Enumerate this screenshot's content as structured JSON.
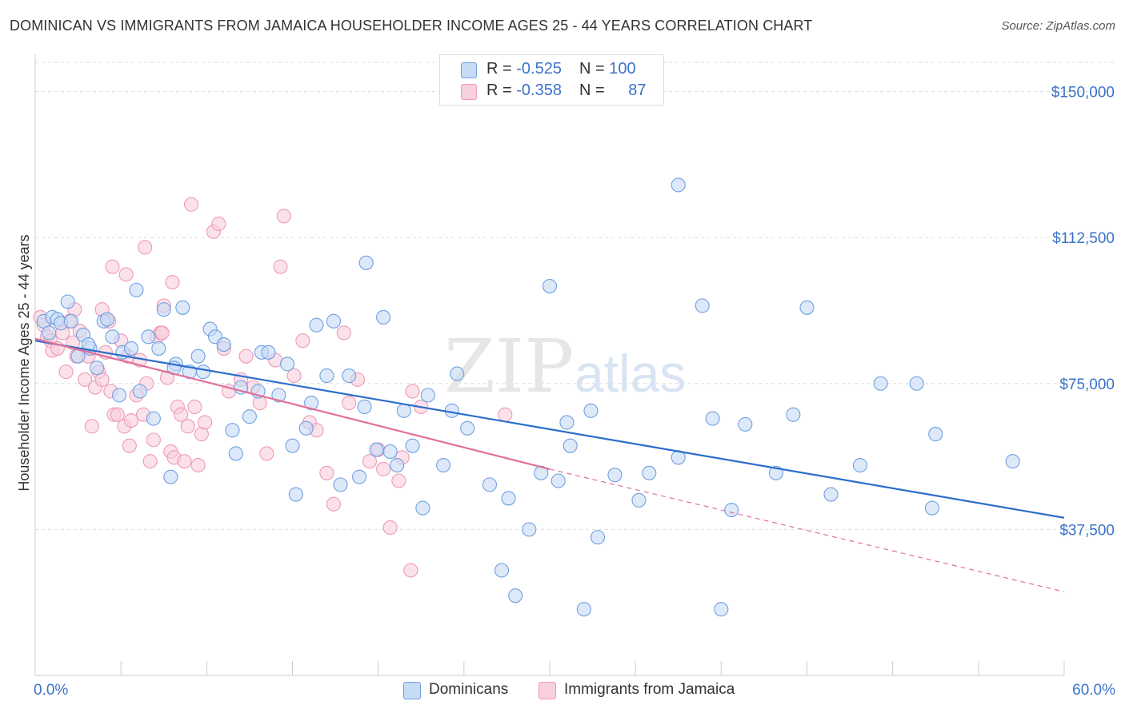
{
  "title": "DOMINICAN VS IMMIGRANTS FROM JAMAICA HOUSEHOLDER INCOME AGES 25 - 44 YEARS CORRELATION CHART",
  "source": "Source: ZipAtlas.com",
  "legend": {
    "rows": [
      {
        "r_label": "R = ",
        "r_value": "-0.525",
        "n_label": "N = ",
        "n_value": "100"
      },
      {
        "r_label": "R = ",
        "r_value": "-0.358",
        "n_label": "N = ",
        "n_value": "87"
      }
    ]
  },
  "colors": {
    "blue": "#6fa0e0",
    "blue_fill": "#c6dbf5",
    "blue_line": "#2a6dcc",
    "pink": "#ee9ab6",
    "pink_fill": "#f8cfdc",
    "pink_line": "#e0709a",
    "tick_text": "#3b73c9"
  },
  "chart_data": {
    "type": "scatter",
    "title": "DOMINICAN VS IMMIGRANTS FROM JAMAICA HOUSEHOLDER INCOME AGES 25 - 44 YEARS CORRELATION CHART",
    "xlabel": "",
    "ylabel": "Householder Income Ages 25 - 44 years",
    "xlim": [
      0,
      60
    ],
    "ylim": [
      0,
      157500
    ],
    "x_tick_labels": [
      "0.0%",
      "60.0%"
    ],
    "y_ticks": [
      37500,
      75000,
      112500,
      150000
    ],
    "y_tick_labels": [
      "$37,500",
      "$75,000",
      "$112,500",
      "$150,000"
    ],
    "watermark": {
      "zip": "ZIP",
      "atlas": "atlas"
    },
    "series": [
      {
        "name": "Dominicans",
        "color": "#6fa0e0",
        "points": [
          [
            0.5,
            91000
          ],
          [
            0.8,
            88000
          ],
          [
            1.0,
            92000
          ],
          [
            1.3,
            91500
          ],
          [
            1.5,
            90500
          ],
          [
            1.9,
            96000
          ],
          [
            2.1,
            91000
          ],
          [
            2.5,
            82000
          ],
          [
            2.8,
            87500
          ],
          [
            3.2,
            84000
          ],
          [
            3.6,
            79000
          ],
          [
            4.0,
            91000
          ],
          [
            4.2,
            91500
          ],
          [
            4.5,
            87000
          ],
          [
            4.9,
            72000
          ],
          [
            5.1,
            83000
          ],
          [
            5.6,
            84000
          ],
          [
            5.9,
            99000
          ],
          [
            6.1,
            73000
          ],
          [
            6.6,
            87000
          ],
          [
            6.9,
            66000
          ],
          [
            7.2,
            84000
          ],
          [
            7.5,
            94000
          ],
          [
            7.9,
            51000
          ],
          [
            8.2,
            80000
          ],
          [
            8.6,
            94500
          ],
          [
            9.0,
            78000
          ],
          [
            9.5,
            82000
          ],
          [
            9.8,
            78000
          ],
          [
            10.2,
            89000
          ],
          [
            10.5,
            87000
          ],
          [
            11.0,
            85000
          ],
          [
            11.5,
            63000
          ],
          [
            11.7,
            57000
          ],
          [
            12.0,
            74000
          ],
          [
            12.5,
            66500
          ],
          [
            13.0,
            73000
          ],
          [
            13.2,
            83000
          ],
          [
            13.6,
            83000
          ],
          [
            14.2,
            72000
          ],
          [
            14.7,
            80000
          ],
          [
            15.0,
            59000
          ],
          [
            15.2,
            46500
          ],
          [
            15.8,
            63500
          ],
          [
            16.1,
            70000
          ],
          [
            16.4,
            90000
          ],
          [
            17.0,
            77000
          ],
          [
            17.4,
            91000
          ],
          [
            17.8,
            49000
          ],
          [
            18.3,
            77000
          ],
          [
            18.9,
            51000
          ],
          [
            19.2,
            69000
          ],
          [
            19.3,
            106000
          ],
          [
            19.9,
            58000
          ],
          [
            20.3,
            92000
          ],
          [
            20.7,
            57500
          ],
          [
            21.1,
            54000
          ],
          [
            21.5,
            68000
          ],
          [
            22.0,
            59000
          ],
          [
            22.6,
            43000
          ],
          [
            22.9,
            72000
          ],
          [
            23.8,
            54000
          ],
          [
            24.3,
            68000
          ],
          [
            24.6,
            77500
          ],
          [
            25.2,
            63500
          ],
          [
            26.5,
            49000
          ],
          [
            27.2,
            27000
          ],
          [
            27.6,
            45500
          ],
          [
            28.0,
            20500
          ],
          [
            28.8,
            37500
          ],
          [
            29.5,
            52000
          ],
          [
            30.0,
            100000
          ],
          [
            30.5,
            50000
          ],
          [
            31.0,
            65000
          ],
          [
            31.2,
            59000
          ],
          [
            32.0,
            17000
          ],
          [
            32.4,
            68000
          ],
          [
            32.8,
            35500
          ],
          [
            33.8,
            51500
          ],
          [
            35.2,
            45000
          ],
          [
            35.8,
            52000
          ],
          [
            37.5,
            56000
          ],
          [
            38.9,
            95000
          ],
          [
            40.0,
            17000
          ],
          [
            39.5,
            66000
          ],
          [
            40.6,
            42500
          ],
          [
            41.4,
            64500
          ],
          [
            43.2,
            52000
          ],
          [
            44.2,
            67000
          ],
          [
            45.0,
            94500
          ],
          [
            46.4,
            46500
          ],
          [
            48.1,
            54000
          ],
          [
            49.3,
            75000
          ],
          [
            51.4,
            75000
          ],
          [
            52.3,
            43000
          ],
          [
            52.5,
            62000
          ],
          [
            57.0,
            55000
          ],
          [
            37.5,
            126000
          ],
          [
            3.1,
            85000
          ],
          [
            8.1,
            79000
          ]
        ]
      },
      {
        "name": "Immigrants from Jamaica",
        "color": "#ee9ab6",
        "points": [
          [
            0.3,
            92000
          ],
          [
            0.5,
            90000
          ],
          [
            0.7,
            87000
          ],
          [
            0.9,
            86000
          ],
          [
            1.0,
            83500
          ],
          [
            1.3,
            84000
          ],
          [
            1.6,
            88000
          ],
          [
            1.8,
            78000
          ],
          [
            2.0,
            91000
          ],
          [
            2.2,
            85500
          ],
          [
            2.4,
            82000
          ],
          [
            2.6,
            88500
          ],
          [
            2.9,
            76000
          ],
          [
            3.1,
            82000
          ],
          [
            3.3,
            64000
          ],
          [
            3.5,
            74000
          ],
          [
            3.7,
            78000
          ],
          [
            3.9,
            76000
          ],
          [
            4.1,
            83000
          ],
          [
            4.3,
            91000
          ],
          [
            4.4,
            73000
          ],
          [
            4.6,
            67000
          ],
          [
            4.8,
            67000
          ],
          [
            5.0,
            86000
          ],
          [
            5.2,
            64000
          ],
          [
            5.3,
            103000
          ],
          [
            5.4,
            82000
          ],
          [
            5.5,
            59000
          ],
          [
            5.6,
            65500
          ],
          [
            5.9,
            72000
          ],
          [
            6.1,
            81000
          ],
          [
            6.3,
            67000
          ],
          [
            6.5,
            75000
          ],
          [
            6.7,
            55000
          ],
          [
            6.9,
            60500
          ],
          [
            7.1,
            87000
          ],
          [
            7.3,
            88000
          ],
          [
            7.5,
            95000
          ],
          [
            7.7,
            76500
          ],
          [
            7.9,
            57500
          ],
          [
            8.1,
            56000
          ],
          [
            8.3,
            69000
          ],
          [
            8.5,
            67000
          ],
          [
            8.7,
            55000
          ],
          [
            8.9,
            64000
          ],
          [
            9.1,
            121000
          ],
          [
            9.3,
            69000
          ],
          [
            9.5,
            54000
          ],
          [
            9.7,
            62000
          ],
          [
            9.9,
            65000
          ],
          [
            10.4,
            114000
          ],
          [
            10.7,
            116000
          ],
          [
            11.0,
            84000
          ],
          [
            11.3,
            73000
          ],
          [
            12.0,
            76000
          ],
          [
            12.3,
            82000
          ],
          [
            12.7,
            74000
          ],
          [
            13.1,
            70000
          ],
          [
            13.5,
            57000
          ],
          [
            14.0,
            81000
          ],
          [
            14.3,
            105000
          ],
          [
            14.5,
            118000
          ],
          [
            15.1,
            77000
          ],
          [
            15.6,
            86000
          ],
          [
            16.0,
            65000
          ],
          [
            16.4,
            63000
          ],
          [
            17.0,
            52000
          ],
          [
            17.4,
            44000
          ],
          [
            18.0,
            88000
          ],
          [
            18.3,
            70000
          ],
          [
            18.8,
            76000
          ],
          [
            19.5,
            55000
          ],
          [
            20.0,
            58000
          ],
          [
            20.3,
            53000
          ],
          [
            20.7,
            38000
          ],
          [
            21.2,
            50000
          ],
          [
            21.4,
            56000
          ],
          [
            21.9,
            27000
          ],
          [
            22.0,
            73000
          ],
          [
            22.5,
            69000
          ],
          [
            4.5,
            105000
          ],
          [
            2.3,
            94000
          ],
          [
            6.4,
            110000
          ],
          [
            7.4,
            88000
          ],
          [
            8.0,
            101000
          ],
          [
            27.4,
            67000
          ],
          [
            3.9,
            94000
          ]
        ]
      }
    ],
    "trend_lines": [
      {
        "series": "Dominicans",
        "x": [
          0,
          60
        ],
        "y": [
          86000,
          40500
        ]
      },
      {
        "series": "Immigrants from Jamaica",
        "x": [
          0,
          30
        ],
        "y": [
          86500,
          53000
        ],
        "dashed_extension_to": [
          60,
          21500
        ]
      }
    ]
  },
  "bottom_legend": {
    "items": [
      {
        "label": "Dominicans"
      },
      {
        "label": "Immigrants from Jamaica"
      }
    ]
  }
}
